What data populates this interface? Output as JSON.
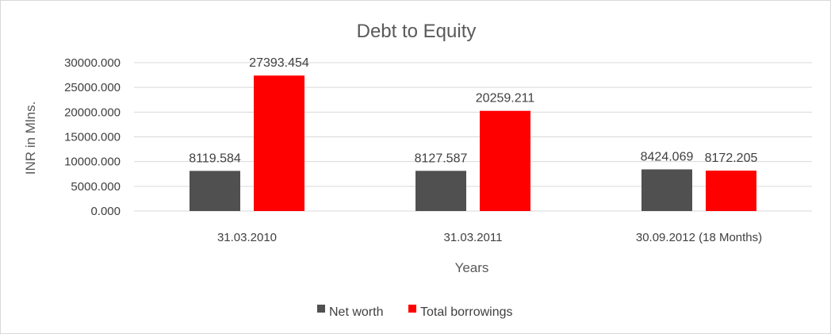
{
  "chart_data": {
    "type": "bar",
    "title": "Debt to Equity",
    "xlabel": "Years",
    "ylabel": "INR in Mlns.",
    "categories": [
      "31.03.2010",
      "31.03.2011",
      "30.09.2012 (18 Months)"
    ],
    "series": [
      {
        "name": "Net worth",
        "color": "#505050",
        "values": [
          8119.584,
          8127.587,
          8424.069
        ],
        "labels": [
          "8119.584",
          "8127.587",
          "8424.069"
        ]
      },
      {
        "name": "Total borrowings",
        "color": "#ff0000",
        "values": [
          27393.454,
          20259.211,
          8172.205
        ],
        "labels": [
          "27393.454",
          "20259.211",
          "8172.205"
        ]
      }
    ],
    "yticks": [
      0,
      5000,
      10000,
      15000,
      20000,
      25000,
      30000
    ],
    "ytick_labels": [
      "0.000",
      "5000.000",
      "10000.000",
      "15000.000",
      "20000.000",
      "25000.000",
      "30000.000"
    ],
    "ylim": [
      0,
      30000
    ],
    "grid": true,
    "legend_position": "bottom"
  }
}
